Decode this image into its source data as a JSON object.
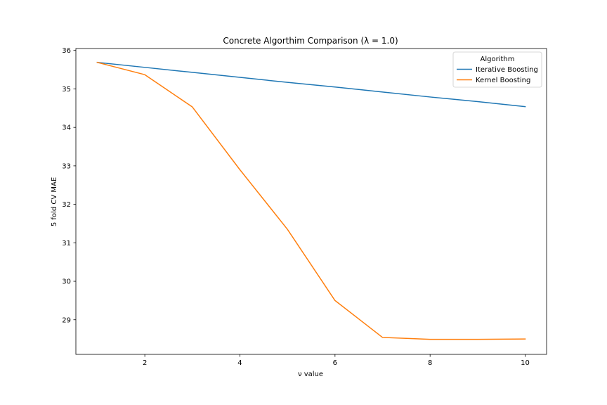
{
  "chart_data": {
    "type": "line",
    "title": "Concrete Algorthim Comparison (λ = 1.0)",
    "xlabel": "ν value",
    "ylabel": "5 fold CV MAE",
    "xlim": [
      0.55,
      10.45
    ],
    "ylim": [
      28.1,
      36.05
    ],
    "x_ticks": [
      2,
      4,
      6,
      8,
      10
    ],
    "y_ticks": [
      29,
      30,
      31,
      32,
      33,
      34,
      35,
      36
    ],
    "grid": false,
    "legend": {
      "title": "Algorithm",
      "placement": "top-right"
    },
    "x": [
      1,
      2,
      3,
      4,
      5,
      6,
      7,
      8,
      9,
      10
    ],
    "series": [
      {
        "name": "Iterative Boosting",
        "color": "#1f77b4",
        "values": [
          35.69,
          35.56,
          35.43,
          35.3,
          35.17,
          35.05,
          34.92,
          34.79,
          34.67,
          34.54
        ]
      },
      {
        "name": "Kernel Boosting",
        "color": "#ff7f0e",
        "values": [
          35.69,
          35.37,
          34.53,
          32.9,
          31.35,
          29.5,
          28.54,
          28.49,
          28.49,
          28.5
        ]
      }
    ]
  }
}
